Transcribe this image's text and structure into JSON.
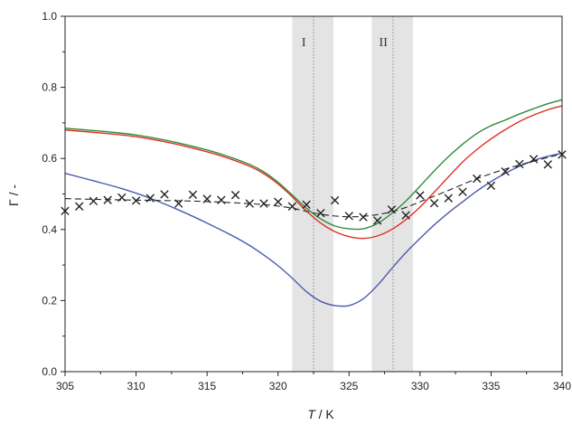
{
  "chart_data": {
    "type": "line",
    "title": "",
    "xlabel_italic": "T",
    "xlabel_rest": " / K",
    "ylabel": "Γ / -",
    "xlim": [
      305,
      340
    ],
    "ylim": [
      0.0,
      1.0
    ],
    "xticks": [
      305,
      310,
      315,
      320,
      325,
      330,
      335,
      340
    ],
    "xtick_labels": [
      "305",
      "310",
      "315",
      "320",
      "325",
      "330",
      "335",
      "340"
    ],
    "yticks": [
      0.0,
      0.2,
      0.4,
      0.6,
      0.8,
      1.0
    ],
    "ytick_labels": [
      "0.0",
      "0.2",
      "0.4",
      "0.6",
      "0.8",
      "1.0"
    ],
    "grid": false,
    "bands": [
      {
        "label": "I",
        "x_from": 321.0,
        "x_to": 323.9,
        "x_line": 322.5
      },
      {
        "label": "II",
        "x_from": 326.6,
        "x_to": 329.5,
        "x_line": 328.1
      }
    ],
    "series": [
      {
        "style": "solid",
        "color": "#2e8b3a",
        "x": [
          305,
          308,
          310,
          312,
          314,
          316,
          318,
          319,
          320,
          321,
          322,
          323,
          324,
          325,
          326,
          327,
          328,
          329,
          330,
          331,
          332,
          333,
          334,
          335,
          336,
          337,
          338,
          339,
          340
        ],
        "y": [
          0.685,
          0.675,
          0.666,
          0.652,
          0.634,
          0.612,
          0.583,
          0.562,
          0.533,
          0.497,
          0.46,
          0.43,
          0.41,
          0.402,
          0.402,
          0.417,
          0.445,
          0.48,
          0.522,
          0.565,
          0.605,
          0.64,
          0.67,
          0.692,
          0.708,
          0.725,
          0.74,
          0.754,
          0.765
        ]
      },
      {
        "style": "solid",
        "color": "#e03020",
        "x": [
          305,
          308,
          310,
          312,
          314,
          316,
          318,
          319,
          320,
          321,
          322,
          323,
          324,
          325,
          326,
          327,
          328,
          329,
          330,
          331,
          332,
          333,
          334,
          335,
          336,
          337,
          338,
          339,
          340
        ],
        "y": [
          0.68,
          0.67,
          0.661,
          0.647,
          0.629,
          0.607,
          0.578,
          0.557,
          0.528,
          0.492,
          0.452,
          0.418,
          0.394,
          0.38,
          0.375,
          0.382,
          0.4,
          0.428,
          0.463,
          0.505,
          0.548,
          0.59,
          0.625,
          0.655,
          0.681,
          0.704,
          0.722,
          0.737,
          0.748
        ]
      },
      {
        "style": "solid",
        "color": "#4a5ab0",
        "x": [
          305,
          307,
          309,
          311,
          313,
          315,
          317,
          318,
          319,
          320,
          321,
          322,
          323,
          324,
          325,
          326,
          327,
          328,
          329,
          330,
          331,
          332,
          333,
          334,
          335,
          336,
          337,
          338,
          339,
          340
        ],
        "y": [
          0.558,
          0.537,
          0.515,
          0.488,
          0.455,
          0.418,
          0.378,
          0.355,
          0.328,
          0.298,
          0.263,
          0.225,
          0.198,
          0.186,
          0.186,
          0.205,
          0.243,
          0.29,
          0.335,
          0.375,
          0.413,
          0.447,
          0.478,
          0.508,
          0.535,
          0.558,
          0.578,
          0.594,
          0.606,
          0.615
        ]
      },
      {
        "style": "dashed",
        "color": "#222222",
        "x": [
          305,
          308,
          311,
          314,
          317,
          319,
          320,
          321,
          322,
          323,
          324,
          325,
          326,
          327,
          328,
          329,
          330,
          332,
          334,
          336,
          338,
          340
        ],
        "y": [
          0.487,
          0.484,
          0.482,
          0.48,
          0.475,
          0.47,
          0.466,
          0.46,
          0.451,
          0.443,
          0.438,
          0.436,
          0.437,
          0.442,
          0.45,
          0.462,
          0.478,
          0.51,
          0.543,
          0.57,
          0.592,
          0.613
        ]
      }
    ],
    "markers": {
      "symbol": "×",
      "color": "#222222",
      "points": [
        [
          305,
          0.452
        ],
        [
          306,
          0.465
        ],
        [
          307,
          0.48
        ],
        [
          308,
          0.483
        ],
        [
          309,
          0.49
        ],
        [
          310,
          0.481
        ],
        [
          311,
          0.488
        ],
        [
          312,
          0.499
        ],
        [
          313,
          0.473
        ],
        [
          314,
          0.498
        ],
        [
          315,
          0.486
        ],
        [
          316,
          0.483
        ],
        [
          317,
          0.497
        ],
        [
          318,
          0.473
        ],
        [
          319,
          0.473
        ],
        [
          320,
          0.478
        ],
        [
          321,
          0.465
        ],
        [
          322,
          0.47
        ],
        [
          323,
          0.446
        ],
        [
          324,
          0.482
        ],
        [
          325,
          0.438
        ],
        [
          326,
          0.435
        ],
        [
          327,
          0.425
        ],
        [
          328,
          0.456
        ],
        [
          329,
          0.44
        ],
        [
          330,
          0.496
        ],
        [
          331,
          0.474
        ],
        [
          332,
          0.488
        ],
        [
          333,
          0.506
        ],
        [
          334,
          0.543
        ],
        [
          335,
          0.523
        ],
        [
          336,
          0.563
        ],
        [
          337,
          0.584
        ],
        [
          338,
          0.598
        ],
        [
          339,
          0.583
        ],
        [
          340,
          0.611
        ]
      ]
    }
  }
}
